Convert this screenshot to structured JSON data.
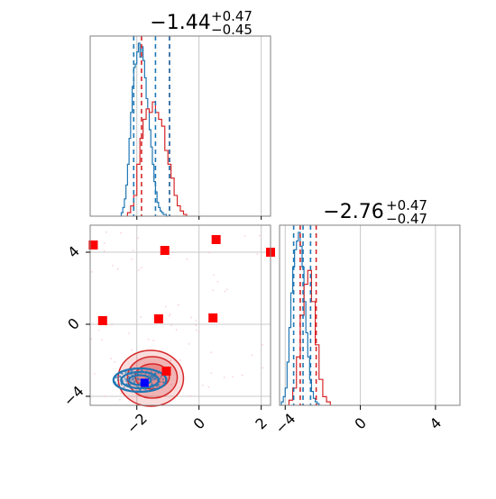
{
  "colors": {
    "blue": "#1f77b4",
    "red": "#d62728",
    "marker_red": "#ff0000",
    "marker_blue": "#0000ff",
    "grid": "#c8c8c8",
    "frame": "#808080"
  },
  "chart_data": [
    {
      "type": "histogram",
      "panel": "marginal-x",
      "title": {
        "value": "−1.44",
        "plus": "+0.47",
        "minus": "−0.45"
      },
      "xlim": [
        -3.5,
        2.3
      ],
      "grid": true,
      "quantile_lines": {
        "blue": [
          -2.1,
          -1.4,
          -0.95
        ],
        "red": [
          -1.85,
          -0.95
        ]
      },
      "series": [
        {
          "color": "blue",
          "bins": [
            -2.5,
            -2.45,
            -2.4,
            -2.35,
            -2.3,
            -2.25,
            -2.2,
            -2.15,
            -2.1,
            -2.05,
            -2.0,
            -1.95,
            -1.9,
            -1.85,
            -1.8,
            -1.75,
            -1.7,
            -1.65,
            -1.6,
            -1.55,
            -1.5,
            -1.45,
            -1.4,
            -1.35,
            -1.3,
            -1.25,
            -1.2,
            -1.15,
            -1.1,
            -1.05,
            -1.0
          ],
          "counts": [
            2,
            5,
            10,
            18,
            30,
            45,
            60,
            75,
            86,
            88,
            95,
            100,
            92,
            98,
            90,
            80,
            68,
            62,
            50,
            40,
            30,
            20,
            14,
            8,
            5,
            3,
            2,
            1,
            1,
            0
          ]
        },
        {
          "color": "red",
          "bins": [
            -2.3,
            -2.2,
            -2.1,
            -2.0,
            -1.9,
            -1.8,
            -1.7,
            -1.6,
            -1.5,
            -1.4,
            -1.3,
            -1.2,
            -1.1,
            -1.0,
            -0.9,
            -0.8,
            -0.7,
            -0.6,
            -0.5,
            -0.4
          ],
          "counts": [
            2,
            6,
            12,
            30,
            45,
            56,
            62,
            60,
            66,
            60,
            56,
            52,
            38,
            30,
            22,
            12,
            6,
            3,
            1
          ]
        }
      ]
    },
    {
      "type": "scatter",
      "panel": "joint",
      "xlim": [
        -3.5,
        2.3
      ],
      "ylim": [
        -4.5,
        5.5
      ],
      "xticks": [
        "−2",
        "0",
        "2"
      ],
      "yticks": [
        "−4",
        "0",
        "4"
      ],
      "grid": true,
      "red_points": [
        [
          -3.4,
          4.4
        ],
        [
          -1.1,
          4.1
        ],
        [
          0.55,
          4.7
        ],
        [
          2.3,
          4.0
        ],
        [
          -3.1,
          0.2
        ],
        [
          -1.3,
          0.3
        ],
        [
          0.45,
          0.35
        ],
        [
          -1.05,
          -2.6
        ]
      ],
      "blue_points": [
        [
          -1.75,
          -3.25
        ]
      ],
      "red_contours": [
        {
          "cx": -1.55,
          "cy": -3.0,
          "rx": 1.05,
          "ry": 1.55,
          "fill_opacity": 0.35
        },
        {
          "cx": -1.5,
          "cy": -2.95,
          "rx": 0.8,
          "ry": 1.15,
          "fill_opacity": 0.5
        },
        {
          "cx": -1.5,
          "cy": -2.9,
          "rx": 0.55,
          "ry": 0.7,
          "fill_opacity": 0.65
        }
      ],
      "blue_contours": [
        {
          "cx": -1.9,
          "cy": -3.1,
          "rx": 0.85,
          "ry": 0.65
        },
        {
          "cx": -1.9,
          "cy": -3.1,
          "rx": 0.6,
          "ry": 0.45
        },
        {
          "cx": -1.9,
          "cy": -3.1,
          "rx": 0.35,
          "ry": 0.27
        }
      ]
    },
    {
      "type": "histogram",
      "panel": "marginal-y",
      "title": {
        "value": "−2.76",
        "plus": "+0.47",
        "minus": "−0.47"
      },
      "xlim": [
        -4.3,
        5.3
      ],
      "xticks": [
        "−4",
        "0",
        "4"
      ],
      "grid": true,
      "quantile_lines": {
        "blue": [
          -3.55,
          -3.05,
          -2.65
        ],
        "red": [
          -3.2,
          -2.35
        ]
      },
      "series": [
        {
          "color": "blue",
          "bins": [
            -4.2,
            -4.1,
            -4.0,
            -3.9,
            -3.8,
            -3.7,
            -3.6,
            -3.5,
            -3.4,
            -3.3,
            -3.2,
            -3.1,
            -3.0,
            -2.9,
            -2.8,
            -2.7,
            -2.6,
            -2.5,
            -2.4,
            -2.3,
            -2.2
          ],
          "counts": [
            2,
            5,
            10,
            25,
            45,
            65,
            80,
            90,
            95,
            100,
            92,
            80,
            60,
            42,
            28,
            15,
            8,
            4,
            2,
            1
          ]
        },
        {
          "color": "red",
          "bins": [
            -3.8,
            -3.6,
            -3.4,
            -3.2,
            -3.0,
            -2.8,
            -2.6,
            -2.4,
            -2.2,
            -2.0,
            -1.8,
            -1.6
          ],
          "counts": [
            3,
            10,
            28,
            52,
            70,
            78,
            60,
            35,
            15,
            5,
            2
          ]
        }
      ]
    }
  ]
}
